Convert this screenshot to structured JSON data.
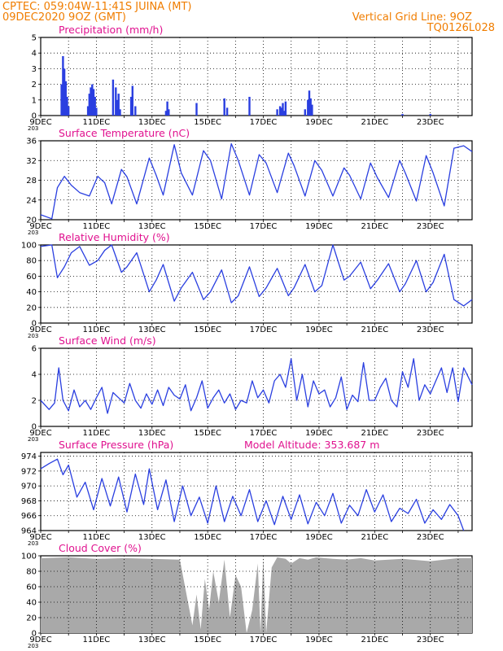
{
  "header": {
    "line1": "CPTEC:   059:04W-11:41S   JUINA (MT)",
    "line2": "09DEC2020 9OZ (GMT)",
    "grid_note": "Vertical Grid Line: 9OZ",
    "code": "TQ0126L028"
  },
  "colors": {
    "header": "#f07d00",
    "title": "#e0128f",
    "series": "#2a3fe0",
    "cloud": "#a9a9a9",
    "grid": "#000000"
  },
  "x_ticks": [
    "9DEC",
    "11DEC",
    "13DEC",
    "15DEC",
    "17DEC",
    "19DEC",
    "21DEC",
    "23DEC"
  ],
  "x_corner_label": "203",
  "chart_data": [
    {
      "type": "bar",
      "title": "Precipitation (mm/h)",
      "ylim": [
        0,
        5
      ],
      "yticks": [
        0,
        1,
        2,
        3,
        4,
        5
      ],
      "x_day_range": [
        0,
        15.5
      ],
      "x": [
        0.75,
        0.8,
        0.85,
        0.9,
        0.95,
        1.0,
        1.7,
        1.75,
        1.8,
        1.85,
        1.9,
        1.95,
        2.0,
        2.6,
        2.7,
        2.75,
        2.8,
        2.85,
        3.25,
        3.3,
        3.4,
        4.5,
        4.55,
        4.6,
        5.6,
        6.6,
        6.7,
        7.5,
        8.5,
        8.6,
        8.65,
        8.7,
        8.75,
        8.8,
        9.5,
        9.6,
        9.65,
        9.7,
        9.75,
        13.0,
        14.0
      ],
      "values": [
        2.0,
        3.8,
        3.0,
        2.2,
        1.2,
        0.6,
        0.6,
        1.4,
        1.8,
        2.0,
        1.7,
        1.2,
        0.5,
        2.3,
        1.8,
        1.0,
        1.4,
        0.4,
        1.2,
        1.9,
        0.6,
        0.3,
        0.9,
        0.4,
        0.8,
        1.1,
        0.5,
        1.2,
        0.4,
        0.6,
        0.5,
        0.8,
        0.3,
        0.9,
        0.4,
        1.0,
        1.6,
        1.1,
        0.7,
        0.1,
        0.1
      ]
    },
    {
      "type": "line",
      "title": "Surface Temperature (nC)",
      "ylim": [
        20,
        36
      ],
      "yticks": [
        20,
        24,
        28,
        32,
        36
      ],
      "x_day_range": [
        0,
        15.5
      ],
      "x": [
        0,
        0.4,
        0.6,
        0.85,
        1.1,
        1.4,
        1.75,
        2.05,
        2.3,
        2.55,
        2.9,
        3.1,
        3.45,
        3.9,
        4.15,
        4.4,
        4.8,
        5.05,
        5.45,
        5.85,
        6.1,
        6.5,
        6.85,
        7.1,
        7.5,
        7.85,
        8.1,
        8.5,
        8.9,
        9.1,
        9.5,
        9.85,
        10.1,
        10.5,
        10.9,
        11.1,
        11.5,
        11.85,
        12.1,
        12.5,
        12.9,
        13.1,
        13.5,
        13.85,
        14.1,
        14.5,
        14.85,
        15.2,
        15.5
      ],
      "values": [
        21,
        20.2,
        26.5,
        28.8,
        27,
        25.5,
        24.8,
        28.8,
        27.5,
        23.2,
        30.2,
        28.7,
        23.2,
        32.5,
        29,
        25,
        35.2,
        29.5,
        25,
        34,
        32,
        24.2,
        35.4,
        32,
        25,
        33.2,
        31.5,
        25.5,
        33.5,
        31,
        24.8,
        32,
        30,
        24.8,
        30.5,
        29,
        24.2,
        31.5,
        28.5,
        24.5,
        32,
        29.5,
        23.8,
        33,
        29.5,
        22.8,
        34.5,
        35,
        33.8
      ]
    },
    {
      "type": "line",
      "title": "Relative Humidity (%)",
      "ylim": [
        0,
        100
      ],
      "yticks": [
        0,
        20,
        40,
        60,
        80,
        100
      ],
      "x_day_range": [
        0,
        15.5
      ],
      "x": [
        0,
        0.4,
        0.6,
        0.85,
        1.1,
        1.4,
        1.75,
        2.05,
        2.3,
        2.55,
        2.9,
        3.1,
        3.45,
        3.9,
        4.15,
        4.4,
        4.8,
        5.05,
        5.45,
        5.85,
        6.1,
        6.5,
        6.85,
        7.1,
        7.5,
        7.85,
        8.1,
        8.5,
        8.9,
        9.1,
        9.5,
        9.85,
        10.1,
        10.5,
        10.9,
        11.1,
        11.5,
        11.85,
        12.1,
        12.5,
        12.9,
        13.1,
        13.5,
        13.85,
        14.1,
        14.5,
        14.85,
        15.2,
        15.5
      ],
      "values": [
        98,
        100,
        58,
        72,
        90,
        98,
        74,
        80,
        93,
        100,
        65,
        72,
        90,
        40,
        55,
        75,
        28,
        45,
        65,
        30,
        40,
        68,
        26,
        35,
        72,
        34,
        45,
        70,
        35,
        45,
        75,
        40,
        48,
        100,
        55,
        60,
        78,
        44,
        55,
        76,
        40,
        50,
        80,
        40,
        52,
        88,
        30,
        22,
        30
      ]
    },
    {
      "type": "line",
      "title": "Surface Wind (m/s)",
      "ylim": [
        0,
        6
      ],
      "yticks": [
        0,
        2,
        4,
        6
      ],
      "x_day_range": [
        0,
        15.5
      ],
      "x": [
        0,
        0.3,
        0.5,
        0.65,
        0.8,
        1.0,
        1.2,
        1.4,
        1.6,
        1.8,
        2.0,
        2.2,
        2.4,
        2.6,
        2.8,
        3.0,
        3.2,
        3.4,
        3.6,
        3.8,
        4.0,
        4.2,
        4.4,
        4.6,
        4.8,
        5.0,
        5.2,
        5.4,
        5.6,
        5.8,
        6.0,
        6.2,
        6.4,
        6.6,
        6.8,
        7.0,
        7.2,
        7.4,
        7.6,
        7.8,
        8.0,
        8.2,
        8.4,
        8.6,
        8.8,
        9.0,
        9.2,
        9.4,
        9.6,
        9.8,
        10.0,
        10.2,
        10.4,
        10.6,
        10.8,
        11.0,
        11.2,
        11.4,
        11.6,
        11.8,
        12.0,
        12.2,
        12.4,
        12.6,
        12.8,
        13.0,
        13.2,
        13.4,
        13.6,
        13.8,
        14.0,
        14.2,
        14.4,
        14.6,
        14.8,
        15.0,
        15.2,
        15.5
      ],
      "values": [
        2.0,
        1.3,
        1.8,
        4.5,
        2.0,
        1.2,
        2.8,
        1.5,
        2.0,
        1.3,
        2.2,
        3.0,
        1.0,
        2.6,
        2.2,
        1.8,
        3.3,
        2.0,
        1.4,
        2.5,
        1.7,
        2.8,
        1.6,
        3.0,
        2.4,
        2.1,
        3.2,
        1.2,
        2.2,
        3.5,
        1.4,
        2.2,
        2.8,
        1.8,
        2.5,
        1.3,
        2.0,
        1.8,
        3.5,
        2.2,
        2.8,
        1.8,
        3.5,
        4.0,
        3.0,
        5.2,
        2.0,
        4.0,
        1.5,
        3.5,
        2.5,
        2.8,
        1.5,
        2.2,
        3.8,
        1.3,
        2.4,
        1.9,
        4.9,
        2.0,
        2.0,
        3.0,
        3.7,
        2.0,
        1.5,
        4.2,
        3.0,
        5.2,
        2.0,
        3.2,
        2.5,
        3.5,
        4.5,
        2.6,
        4.5,
        1.9,
        4.5,
        3.2
      ]
    },
    {
      "type": "line",
      "title": "Surface Pressure (hPa)",
      "annotation": "Model Altitude: 353.687  m",
      "ylim": [
        964,
        974.5
      ],
      "yticks": [
        964,
        966,
        968,
        970,
        972,
        974
      ],
      "x_day_range": [
        0,
        15.5
      ],
      "x": [
        0,
        0.3,
        0.6,
        0.8,
        1.0,
        1.3,
        1.6,
        1.9,
        2.2,
        2.5,
        2.8,
        3.1,
        3.4,
        3.7,
        3.9,
        4.2,
        4.5,
        4.8,
        5.1,
        5.4,
        5.7,
        6.0,
        6.3,
        6.6,
        6.9,
        7.2,
        7.5,
        7.8,
        8.1,
        8.4,
        8.7,
        9.0,
        9.3,
        9.6,
        9.9,
        10.2,
        10.5,
        10.8,
        11.1,
        11.4,
        11.7,
        12.0,
        12.3,
        12.6,
        12.9,
        13.2,
        13.5,
        13.8,
        14.1,
        14.4,
        14.7,
        15.0,
        15.2
      ],
      "values": [
        972.3,
        973.0,
        973.6,
        971.5,
        972.8,
        968.5,
        970.5,
        966.8,
        971.0,
        967.3,
        971.2,
        966.5,
        971.6,
        967.5,
        972.3,
        966.8,
        970.8,
        965.2,
        970.0,
        966.0,
        968.5,
        965.0,
        970.0,
        965.2,
        968.6,
        966.0,
        969.5,
        965.2,
        968.0,
        964.8,
        968.6,
        965.5,
        968.8,
        964.9,
        967.8,
        966.0,
        969.0,
        965.0,
        967.4,
        966.0,
        969.5,
        966.5,
        968.8,
        965.2,
        967.0,
        966.3,
        968.2,
        965.0,
        966.8,
        965.5,
        967.5,
        966.0,
        964.0
      ]
    },
    {
      "type": "area",
      "title": "Cloud Cover (%)",
      "ylim": [
        0,
        100
      ],
      "yticks": [
        0,
        20,
        40,
        60,
        80,
        100
      ],
      "x_day_range": [
        0,
        15.5
      ],
      "x": [
        0,
        1.0,
        2.0,
        3.0,
        4.0,
        5.0,
        5.45,
        5.6,
        5.75,
        5.9,
        6.05,
        6.2,
        6.4,
        6.6,
        6.8,
        7.0,
        7.2,
        7.4,
        7.6,
        7.8,
        7.9,
        8.0,
        8.1,
        8.3,
        8.5,
        8.8,
        9.0,
        9.3,
        9.6,
        9.9,
        10.2,
        10.5,
        11.0,
        11.5,
        12.0,
        13.0,
        14.0,
        15.0,
        15.5
      ],
      "values": [
        97,
        98,
        96,
        97,
        96,
        95,
        10,
        50,
        5,
        70,
        30,
        80,
        40,
        95,
        20,
        75,
        60,
        0,
        30,
        90,
        0,
        98,
        0,
        85,
        98,
        96,
        90,
        97,
        95,
        98,
        97,
        96,
        95,
        97,
        94,
        96,
        93,
        97,
        97
      ]
    }
  ]
}
